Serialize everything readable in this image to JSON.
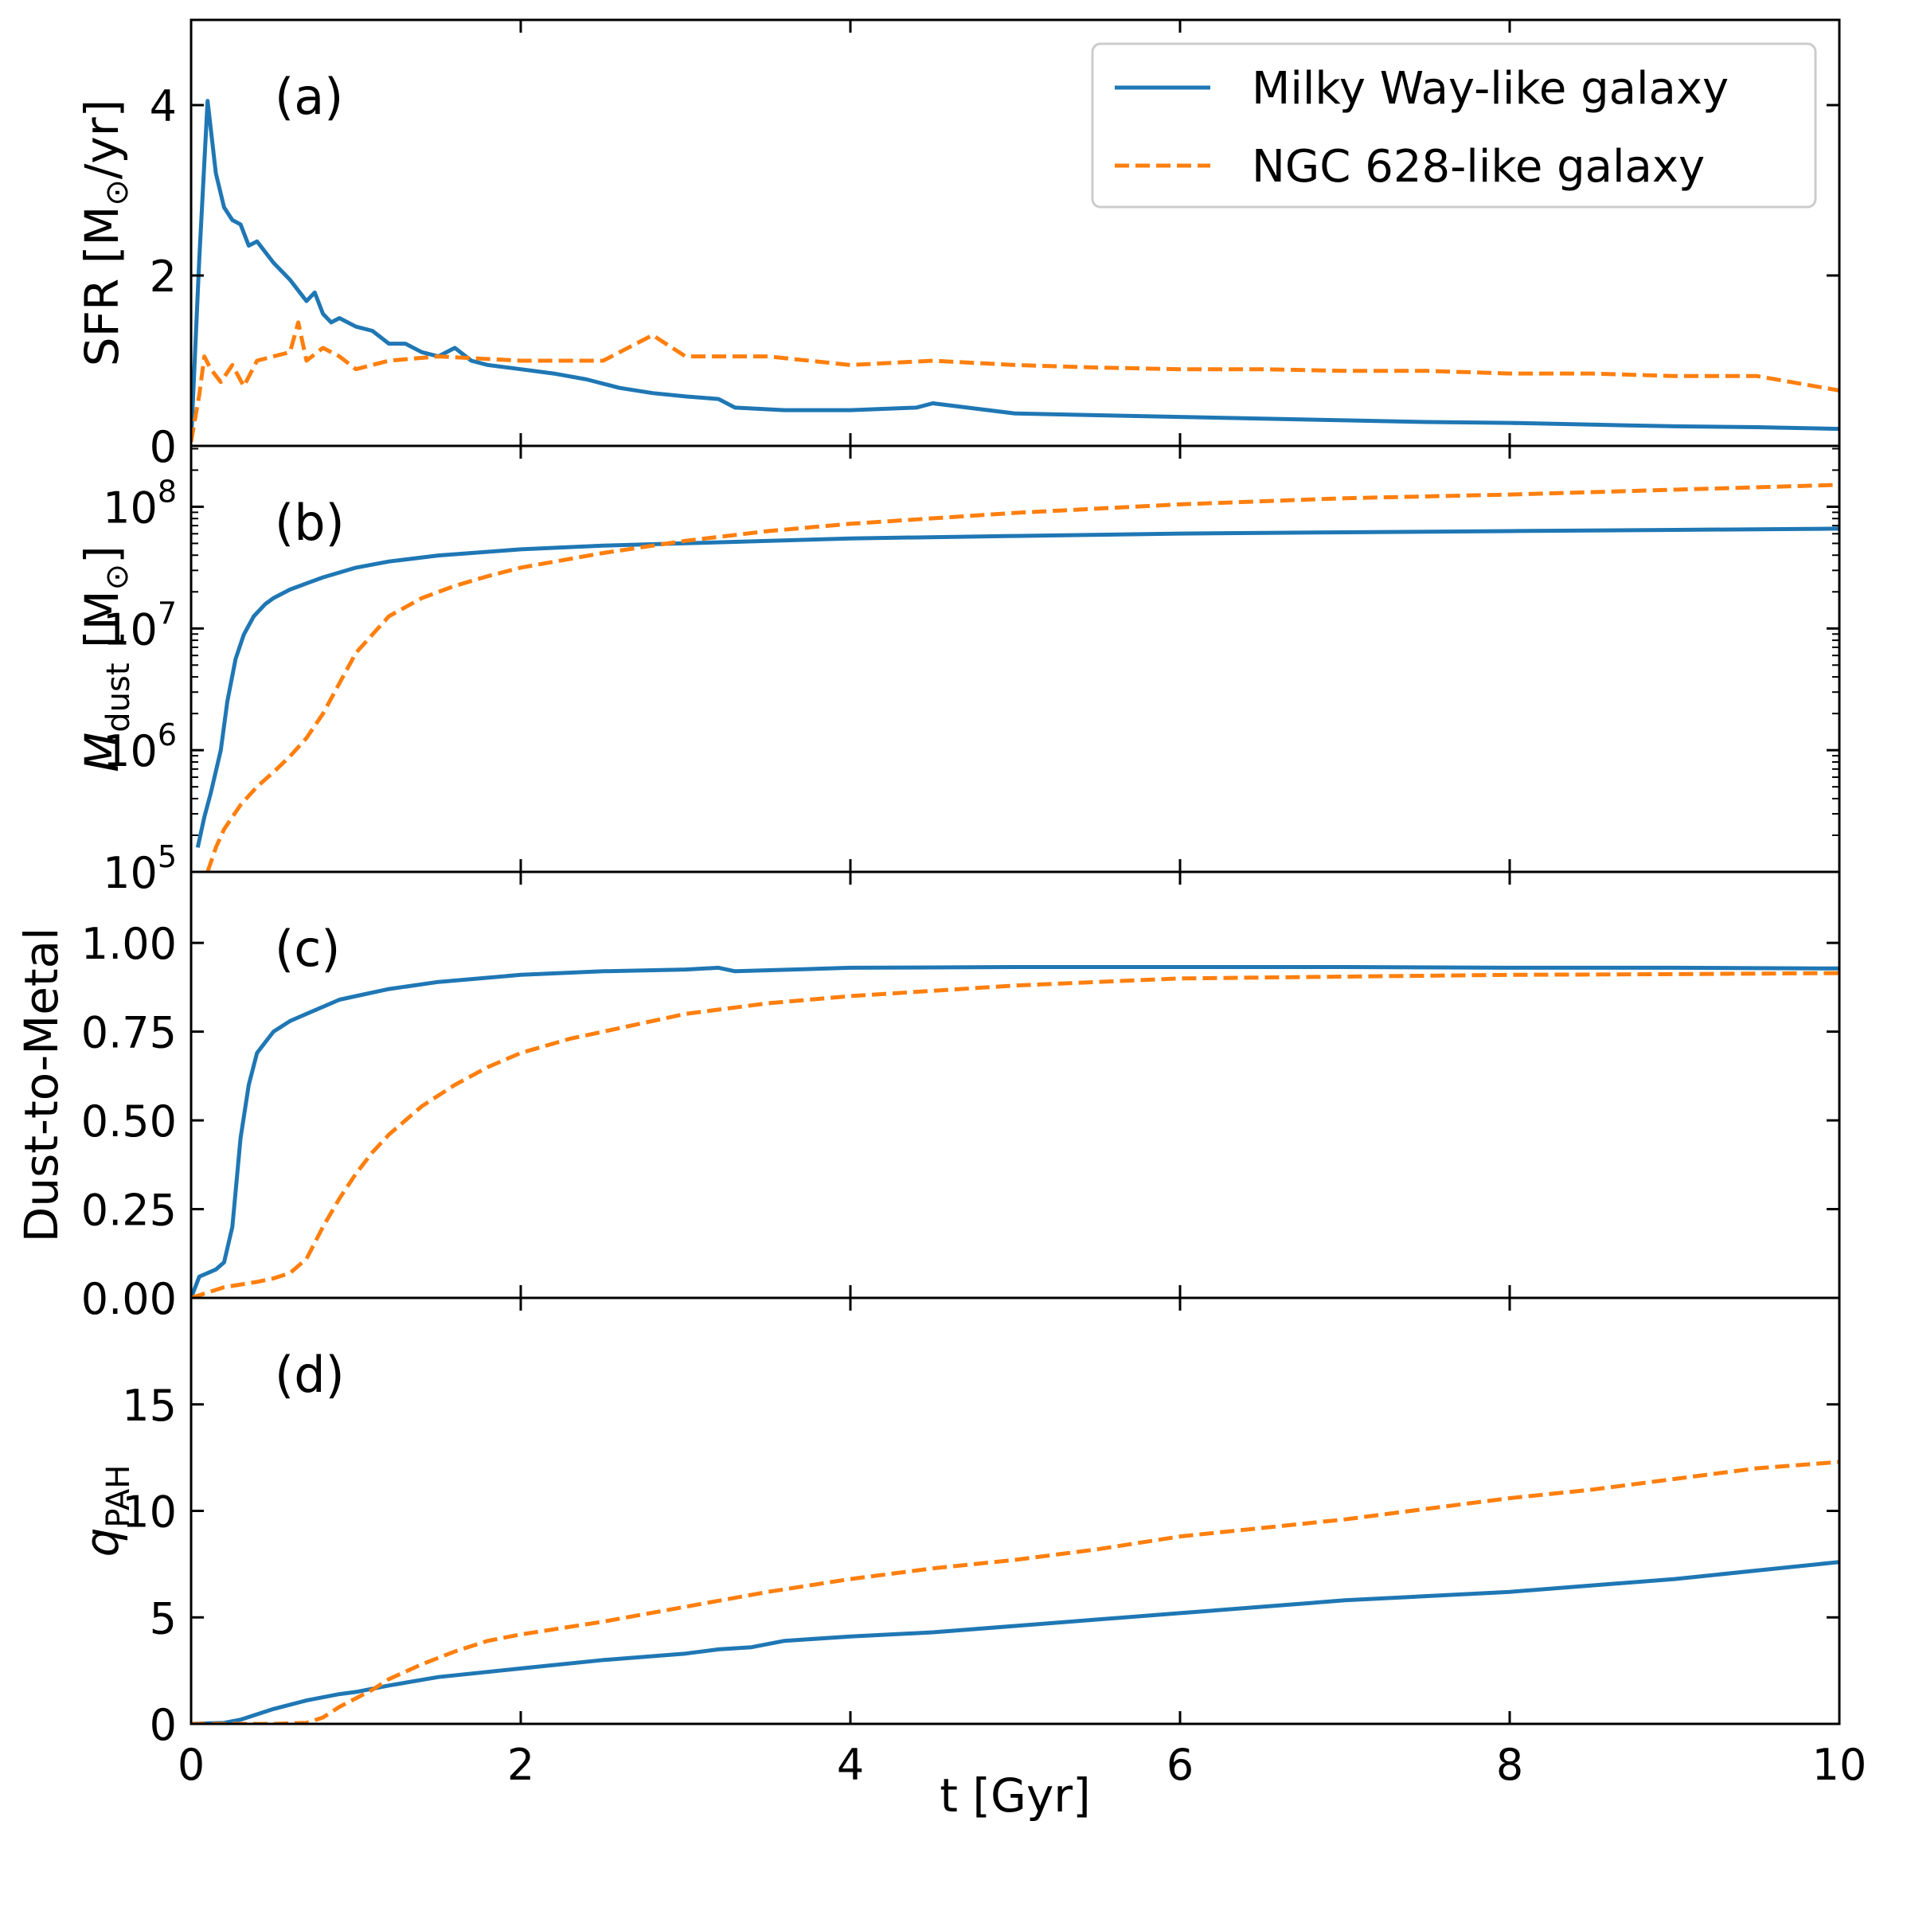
{
  "chart_data": {
    "type": "line",
    "xlabel": "t [Gyr]",
    "xlim": [
      0,
      10
    ],
    "x_ticks": [
      "0",
      "2",
      "4",
      "6",
      "8",
      "10"
    ],
    "legend": {
      "position": "top-right",
      "entries": [
        {
          "name": "Milky Way-like galaxy",
          "color": "#1f77b4",
          "dash": "solid"
        },
        {
          "name": "NGC 628-like galaxy",
          "color": "#ff7f0e",
          "dash": "dashed"
        }
      ]
    },
    "panels": [
      {
        "tag": "(a)",
        "ylabel_main": "SFR [M",
        "ylabel_sub": "⊙",
        "ylabel_end": "/yr]",
        "scale": "linear",
        "ylim": [
          0,
          5
        ],
        "y_ticks": [
          {
            "value": 0,
            "label": "0"
          },
          {
            "value": 2,
            "label": "2"
          },
          {
            "value": 4,
            "label": "4"
          }
        ],
        "series": [
          {
            "name": "Milky Way-like galaxy",
            "color": "#1f77b4",
            "dash": "solid",
            "x": [
              0,
              0.05,
              0.1,
              0.15,
              0.2,
              0.25,
              0.3,
              0.35,
              0.4,
              0.5,
              0.6,
              0.7,
              0.75,
              0.8,
              0.85,
              0.9,
              1.0,
              1.1,
              1.2,
              1.3,
              1.4,
              1.5,
              1.6,
              1.7,
              1.8,
              2.0,
              2.2,
              2.4,
              2.6,
              2.8,
              3.0,
              3.2,
              3.3,
              3.6,
              4.0,
              4.4,
              4.5,
              5.0,
              5.5,
              6.0,
              6.5,
              7.0,
              7.5,
              8.0,
              8.5,
              9.0,
              9.5,
              10.0
            ],
            "y": [
              0.05,
              2.2,
              4.05,
              3.2,
              2.8,
              2.65,
              2.6,
              2.35,
              2.4,
              2.15,
              1.95,
              1.7,
              1.8,
              1.55,
              1.45,
              1.5,
              1.4,
              1.35,
              1.2,
              1.2,
              1.1,
              1.05,
              1.15,
              1.0,
              0.95,
              0.9,
              0.85,
              0.78,
              0.68,
              0.62,
              0.58,
              0.55,
              0.45,
              0.42,
              0.42,
              0.45,
              0.5,
              0.38,
              0.36,
              0.34,
              0.32,
              0.3,
              0.28,
              0.27,
              0.25,
              0.23,
              0.22,
              0.2
            ]
          },
          {
            "name": "NGC 628-like galaxy",
            "color": "#ff7f0e",
            "dash": "dashed",
            "x": [
              0,
              0.05,
              0.08,
              0.12,
              0.18,
              0.25,
              0.32,
              0.4,
              0.5,
              0.6,
              0.65,
              0.7,
              0.8,
              0.9,
              1.0,
              1.2,
              1.5,
              2.0,
              2.5,
              2.8,
              3.0,
              3.5,
              4.0,
              4.5,
              5.0,
              5.5,
              6.0,
              6.5,
              7.0,
              7.5,
              8.0,
              8.5,
              9.0,
              9.5,
              10.0
            ],
            "y": [
              0.05,
              0.6,
              1.05,
              0.9,
              0.75,
              0.95,
              0.7,
              1.0,
              1.05,
              1.1,
              1.45,
              1.0,
              1.15,
              1.05,
              0.9,
              1.0,
              1.05,
              1.0,
              1.0,
              1.3,
              1.05,
              1.05,
              0.95,
              1.0,
              0.95,
              0.92,
              0.9,
              0.9,
              0.88,
              0.88,
              0.85,
              0.85,
              0.82,
              0.82,
              0.65
            ]
          }
        ]
      },
      {
        "tag": "(b)",
        "ylabel_main": "M",
        "ylabel_sub": "dust",
        "ylabel_end": " [M",
        "ylabel_sub2": "⊙",
        "ylabel_tail": "]",
        "scale": "log",
        "ylim_log10": [
          5,
          8.5
        ],
        "y_ticks": [
          {
            "value": 5,
            "base": "10",
            "exp": "5"
          },
          {
            "value": 6,
            "base": "10",
            "exp": "6"
          },
          {
            "value": 7,
            "base": "10",
            "exp": "7"
          },
          {
            "value": 8,
            "base": "10",
            "exp": "8"
          }
        ],
        "series": [
          {
            "name": "Milky Way-like galaxy",
            "color": "#1f77b4",
            "dash": "solid",
            "x": [
              0.04,
              0.08,
              0.12,
              0.18,
              0.22,
              0.27,
              0.32,
              0.38,
              0.45,
              0.5,
              0.6,
              0.7,
              0.8,
              1.0,
              1.2,
              1.5,
              2.0,
              2.5,
              3.0,
              4.0,
              5.0,
              6.0,
              7.0,
              8.0,
              9.0,
              10.0
            ],
            "y_log10": [
              5.2,
              5.45,
              5.65,
              6.0,
              6.4,
              6.75,
              6.95,
              7.1,
              7.2,
              7.25,
              7.32,
              7.37,
              7.42,
              7.5,
              7.55,
              7.6,
              7.65,
              7.68,
              7.7,
              7.74,
              7.76,
              7.78,
              7.79,
              7.8,
              7.81,
              7.82
            ]
          },
          {
            "name": "NGC 628-like galaxy",
            "color": "#ff7f0e",
            "dash": "dashed",
            "x": [
              0.1,
              0.15,
              0.2,
              0.3,
              0.4,
              0.5,
              0.6,
              0.7,
              0.8,
              0.9,
              1.0,
              1.2,
              1.4,
              1.6,
              1.8,
              2.0,
              2.5,
              3.0,
              3.5,
              4.0,
              5.0,
              6.0,
              7.0,
              8.0,
              9.0,
              10.0
            ],
            "y_log10": [
              5.0,
              5.2,
              5.35,
              5.55,
              5.7,
              5.82,
              5.95,
              6.1,
              6.3,
              6.55,
              6.8,
              7.1,
              7.25,
              7.35,
              7.43,
              7.5,
              7.62,
              7.72,
              7.8,
              7.86,
              7.95,
              8.02,
              8.07,
              8.1,
              8.14,
              8.18
            ]
          }
        ]
      },
      {
        "tag": "(c)",
        "ylabel_main": "Dust-to-Metal",
        "scale": "linear",
        "ylim": [
          0,
          1.2
        ],
        "y_ticks": [
          {
            "value": 0,
            "label": "0.00"
          },
          {
            "value": 0.25,
            "label": "0.25"
          },
          {
            "value": 0.5,
            "label": "0.50"
          },
          {
            "value": 0.75,
            "label": "0.75"
          },
          {
            "value": 1.0,
            "label": "1.00"
          }
        ],
        "series": [
          {
            "name": "Milky Way-like galaxy",
            "color": "#1f77b4",
            "dash": "solid",
            "x": [
              0,
              0.05,
              0.1,
              0.15,
              0.2,
              0.25,
              0.3,
              0.35,
              0.4,
              0.45,
              0.5,
              0.6,
              0.7,
              0.8,
              0.9,
              1.0,
              1.2,
              1.5,
              2.0,
              2.5,
              3.0,
              3.2,
              3.3,
              4.0,
              5.0,
              6.0,
              7.0,
              8.0,
              9.0,
              10.0
            ],
            "y": [
              0.0,
              0.06,
              0.07,
              0.08,
              0.1,
              0.2,
              0.45,
              0.6,
              0.69,
              0.72,
              0.75,
              0.78,
              0.8,
              0.82,
              0.84,
              0.85,
              0.87,
              0.89,
              0.91,
              0.92,
              0.925,
              0.93,
              0.92,
              0.93,
              0.932,
              0.932,
              0.932,
              0.93,
              0.93,
              0.928
            ]
          },
          {
            "name": "NGC 628-like galaxy",
            "color": "#ff7f0e",
            "dash": "dashed",
            "x": [
              0,
              0.2,
              0.4,
              0.5,
              0.6,
              0.7,
              0.8,
              0.9,
              1.0,
              1.1,
              1.2,
              1.4,
              1.6,
              1.8,
              2.0,
              2.3,
              2.6,
              3.0,
              3.5,
              4.0,
              5.0,
              6.0,
              7.0,
              8.0,
              9.0,
              10.0
            ],
            "y": [
              0.0,
              0.03,
              0.045,
              0.055,
              0.07,
              0.11,
              0.2,
              0.28,
              0.35,
              0.41,
              0.46,
              0.54,
              0.6,
              0.65,
              0.69,
              0.73,
              0.76,
              0.8,
              0.83,
              0.85,
              0.88,
              0.9,
              0.905,
              0.91,
              0.912,
              0.915
            ]
          }
        ]
      },
      {
        "tag": "(d)",
        "ylabel_main": "q",
        "ylabel_sub": "PAH",
        "scale": "linear",
        "ylim": [
          0,
          20
        ],
        "y_ticks": [
          {
            "value": 0,
            "label": "0"
          },
          {
            "value": 5,
            "label": "5"
          },
          {
            "value": 10,
            "label": "10"
          },
          {
            "value": 15,
            "label": "15"
          }
        ],
        "series": [
          {
            "name": "Milky Way-like galaxy",
            "color": "#1f77b4",
            "dash": "solid",
            "x": [
              0,
              0.2,
              0.3,
              0.5,
              0.7,
              0.9,
              1.0,
              1.2,
              1.5,
              2.0,
              2.5,
              3.0,
              3.2,
              3.4,
              3.6,
              4.0,
              4.5,
              5.0,
              5.5,
              6.0,
              6.5,
              7.0,
              7.5,
              8.0,
              8.5,
              9.0,
              9.5,
              10.0
            ],
            "y": [
              0,
              0.05,
              0.2,
              0.7,
              1.1,
              1.4,
              1.5,
              1.8,
              2.2,
              2.6,
              3.0,
              3.3,
              3.5,
              3.6,
              3.9,
              4.1,
              4.3,
              4.6,
              4.9,
              5.2,
              5.5,
              5.8,
              6.0,
              6.2,
              6.5,
              6.8,
              7.2,
              7.6
            ]
          },
          {
            "name": "NGC 628-like galaxy",
            "color": "#ff7f0e",
            "dash": "dashed",
            "x": [
              0,
              0.5,
              0.7,
              0.8,
              0.9,
              1.0,
              1.1,
              1.2,
              1.4,
              1.6,
              1.8,
              2.0,
              2.5,
              3.0,
              3.5,
              4.0,
              4.5,
              5.0,
              5.5,
              6.0,
              6.5,
              7.0,
              7.5,
              8.0,
              8.5,
              9.0,
              9.5,
              10.0
            ],
            "y": [
              0,
              0.0,
              0.05,
              0.3,
              0.8,
              1.2,
              1.6,
              2.1,
              2.8,
              3.4,
              3.9,
              4.2,
              4.8,
              5.5,
              6.2,
              6.8,
              7.3,
              7.7,
              8.2,
              8.8,
              9.2,
              9.6,
              10.1,
              10.6,
              11.0,
              11.5,
              12.0,
              12.3
            ]
          }
        ]
      }
    ]
  }
}
